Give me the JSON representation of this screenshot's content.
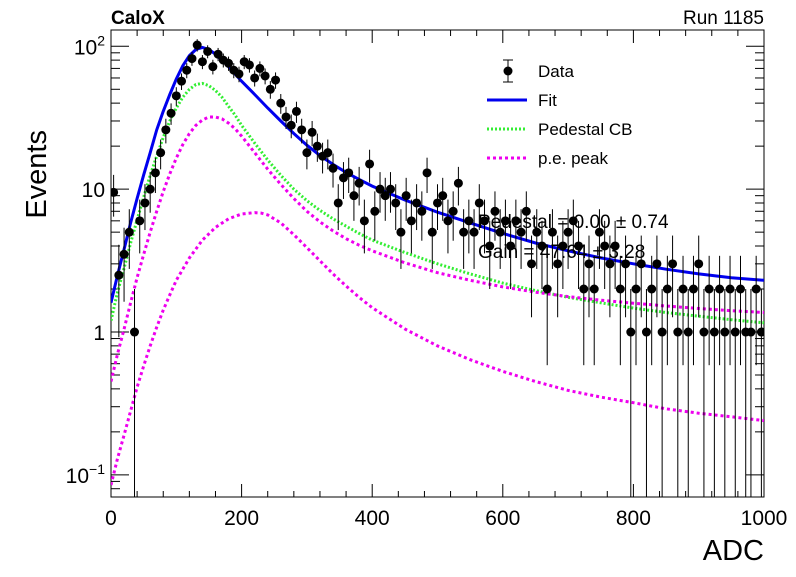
{
  "header": {
    "experiment": "CaloX",
    "run": "Run 1185"
  },
  "chart_data": {
    "type": "scatter",
    "xlabel": "ADC",
    "ylabel": "Events",
    "xlim": [
      0,
      1000
    ],
    "ylim": [
      0.07,
      130
    ],
    "yscale": "log",
    "grid": false,
    "legend_position": "top-right",
    "x_ticks": [
      {
        "value": 0,
        "label": "0"
      },
      {
        "value": 200,
        "label": "200"
      },
      {
        "value": 400,
        "label": "400"
      },
      {
        "value": 600,
        "label": "600"
      },
      {
        "value": 800,
        "label": "800"
      },
      {
        "value": 1000,
        "label": "1000"
      }
    ],
    "y_ticks": [
      {
        "value": 0.1,
        "base": "10",
        "exp": "−1"
      },
      {
        "value": 1,
        "label": "1"
      },
      {
        "value": 10,
        "label": "10"
      },
      {
        "value": 100,
        "base": "10",
        "exp": "2"
      }
    ],
    "legend": [
      {
        "label": "Data",
        "style": "marker",
        "color": "#000000"
      },
      {
        "label": "Fit",
        "style": "solid",
        "color": "#0000ee"
      },
      {
        "label": "Pedestal CB",
        "style": "dotted",
        "color": "#33ee33"
      },
      {
        "label": "p.e. peak",
        "style": "dashed",
        "color": "#ee00ee"
      }
    ],
    "annotations": [
      {
        "text": "Pedestal = 0.00 ± 0.74"
      },
      {
        "text": "Gain = 47.64 ± 3.28"
      }
    ],
    "series": [
      {
        "name": "Data",
        "kind": "points",
        "color": "#000000",
        "points": [
          [
            4,
            9.5
          ],
          [
            12,
            2.5
          ],
          [
            20,
            3.5
          ],
          [
            28,
            5
          ],
          [
            36,
            1
          ],
          [
            44,
            6
          ],
          [
            52,
            8
          ],
          [
            60,
            10
          ],
          [
            68,
            13
          ],
          [
            76,
            18
          ],
          [
            84,
            26
          ],
          [
            92,
            34
          ],
          [
            100,
            45
          ],
          [
            108,
            57
          ],
          [
            116,
            68
          ],
          [
            124,
            82
          ],
          [
            132,
            102
          ],
          [
            140,
            78
          ],
          [
            148,
            92
          ],
          [
            156,
            72
          ],
          [
            164,
            88
          ],
          [
            172,
            80
          ],
          [
            180,
            76
          ],
          [
            188,
            68
          ],
          [
            196,
            64
          ],
          [
            204,
            78
          ],
          [
            212,
            74
          ],
          [
            220,
            60
          ],
          [
            228,
            70
          ],
          [
            236,
            62
          ],
          [
            244,
            50
          ],
          [
            252,
            58
          ],
          [
            260,
            40
          ],
          [
            268,
            32
          ],
          [
            276,
            28
          ],
          [
            284,
            35
          ],
          [
            292,
            26
          ],
          [
            300,
            18
          ],
          [
            308,
            25
          ],
          [
            316,
            20
          ],
          [
            324,
            17
          ],
          [
            332,
            18
          ],
          [
            340,
            14
          ],
          [
            348,
            8
          ],
          [
            356,
            12
          ],
          [
            364,
            13
          ],
          [
            372,
            9
          ],
          [
            380,
            11
          ],
          [
            388,
            6
          ],
          [
            396,
            15
          ],
          [
            404,
            7
          ],
          [
            412,
            10
          ],
          [
            420,
            9
          ],
          [
            428,
            10
          ],
          [
            436,
            8
          ],
          [
            444,
            5
          ],
          [
            452,
            9
          ],
          [
            460,
            6
          ],
          [
            468,
            8
          ],
          [
            476,
            7
          ],
          [
            484,
            13
          ],
          [
            492,
            5
          ],
          [
            500,
            8
          ],
          [
            508,
            9
          ],
          [
            516,
            6
          ],
          [
            524,
            7
          ],
          [
            532,
            11
          ],
          [
            540,
            5
          ],
          [
            548,
            6
          ],
          [
            556,
            5
          ],
          [
            564,
            8
          ],
          [
            572,
            6
          ],
          [
            580,
            4
          ],
          [
            588,
            7
          ],
          [
            596,
            5
          ],
          [
            604,
            6
          ],
          [
            612,
            4
          ],
          [
            620,
            6
          ],
          [
            628,
            5
          ],
          [
            636,
            7
          ],
          [
            644,
            3
          ],
          [
            652,
            5
          ],
          [
            660,
            4
          ],
          [
            668,
            2
          ],
          [
            676,
            5
          ],
          [
            684,
            3
          ],
          [
            692,
            4
          ],
          [
            700,
            5
          ],
          [
            708,
            6
          ],
          [
            716,
            4
          ],
          [
            724,
            2
          ],
          [
            732,
            3
          ],
          [
            740,
            2
          ],
          [
            748,
            5
          ],
          [
            756,
            4
          ],
          [
            764,
            3
          ],
          [
            772,
            4
          ],
          [
            780,
            2
          ],
          [
            788,
            3
          ],
          [
            796,
            1
          ],
          [
            804,
            2
          ],
          [
            812,
            3
          ],
          [
            820,
            1
          ],
          [
            828,
            2
          ],
          [
            836,
            3
          ],
          [
            844,
            1
          ],
          [
            852,
            2
          ],
          [
            860,
            3
          ],
          [
            868,
            1
          ],
          [
            876,
            2
          ],
          [
            884,
            1
          ],
          [
            892,
            2
          ],
          [
            900,
            3
          ],
          [
            908,
            1
          ],
          [
            916,
            2
          ],
          [
            924,
            1
          ],
          [
            932,
            2
          ],
          [
            940,
            1
          ],
          [
            948,
            2
          ],
          [
            956,
            1
          ],
          [
            964,
            2
          ],
          [
            972,
            1
          ],
          [
            980,
            1
          ],
          [
            988,
            2
          ],
          [
            996,
            1
          ]
        ]
      },
      {
        "name": "Fit",
        "kind": "line",
        "color": "#0000ee",
        "points": [
          [
            0,
            1.6
          ],
          [
            10,
            2.5
          ],
          [
            20,
            3.8
          ],
          [
            30,
            5.8
          ],
          [
            40,
            8.6
          ],
          [
            50,
            12.6
          ],
          [
            60,
            18
          ],
          [
            70,
            26
          ],
          [
            80,
            35
          ],
          [
            90,
            46
          ],
          [
            100,
            59
          ],
          [
            110,
            73
          ],
          [
            120,
            86
          ],
          [
            130,
            95
          ],
          [
            140,
            98
          ],
          [
            150,
            95
          ],
          [
            160,
            88
          ],
          [
            170,
            80
          ],
          [
            180,
            72
          ],
          [
            190,
            64
          ],
          [
            200,
            57
          ],
          [
            220,
            46
          ],
          [
            240,
            37
          ],
          [
            260,
            30
          ],
          [
            280,
            24.5
          ],
          [
            300,
            20.3
          ],
          [
            320,
            17.2
          ],
          [
            340,
            14.9
          ],
          [
            360,
            13.1
          ],
          [
            380,
            11.7
          ],
          [
            400,
            10.5
          ],
          [
            450,
            8.4
          ],
          [
            500,
            6.9
          ],
          [
            550,
            5.8
          ],
          [
            600,
            4.9
          ],
          [
            650,
            4.2
          ],
          [
            700,
            3.7
          ],
          [
            750,
            3.3
          ],
          [
            800,
            3.0
          ],
          [
            850,
            2.75
          ],
          [
            900,
            2.55
          ],
          [
            950,
            2.4
          ],
          [
            1000,
            2.3
          ]
        ]
      },
      {
        "name": "Pedestal CB",
        "kind": "line",
        "color": "#33ee33",
        "points": [
          [
            0,
            1.2
          ],
          [
            10,
            1.9
          ],
          [
            20,
            2.8
          ],
          [
            30,
            4.2
          ],
          [
            40,
            6.1
          ],
          [
            50,
            8.8
          ],
          [
            60,
            12.5
          ],
          [
            70,
            17
          ],
          [
            80,
            23
          ],
          [
            90,
            30
          ],
          [
            100,
            37
          ],
          [
            110,
            44
          ],
          [
            120,
            50
          ],
          [
            130,
            54
          ],
          [
            140,
            55
          ],
          [
            150,
            53
          ],
          [
            160,
            49
          ],
          [
            170,
            44
          ],
          [
            180,
            38
          ],
          [
            190,
            33
          ],
          [
            200,
            28
          ],
          [
            220,
            21
          ],
          [
            240,
            16
          ],
          [
            260,
            12.5
          ],
          [
            280,
            10
          ],
          [
            300,
            8.3
          ],
          [
            320,
            7.1
          ],
          [
            340,
            6.2
          ],
          [
            360,
            5.5
          ],
          [
            380,
            4.9
          ],
          [
            400,
            4.4
          ],
          [
            450,
            3.6
          ],
          [
            500,
            3.0
          ],
          [
            550,
            2.55
          ],
          [
            600,
            2.2
          ],
          [
            650,
            1.95
          ],
          [
            700,
            1.75
          ],
          [
            750,
            1.6
          ],
          [
            800,
            1.47
          ],
          [
            850,
            1.37
          ],
          [
            900,
            1.29
          ],
          [
            950,
            1.22
          ],
          [
            1000,
            1.16
          ]
        ]
      },
      {
        "name": "p.e. peak",
        "kind": "line",
        "color": "#ee00ee",
        "points": [
          [
            0,
            0.45
          ],
          [
            10,
            0.7
          ],
          [
            20,
            1.05
          ],
          [
            30,
            1.6
          ],
          [
            40,
            2.4
          ],
          [
            50,
            3.5
          ],
          [
            60,
            5
          ],
          [
            70,
            7
          ],
          [
            80,
            9.6
          ],
          [
            90,
            12.8
          ],
          [
            100,
            16.5
          ],
          [
            110,
            20.5
          ],
          [
            120,
            24.5
          ],
          [
            130,
            28
          ],
          [
            140,
            30.5
          ],
          [
            150,
            32
          ],
          [
            160,
            32
          ],
          [
            170,
            31
          ],
          [
            180,
            29
          ],
          [
            190,
            26.5
          ],
          [
            200,
            23.5
          ],
          [
            220,
            18
          ],
          [
            240,
            13.8
          ],
          [
            260,
            10.8
          ],
          [
            280,
            8.6
          ],
          [
            300,
            7.0
          ],
          [
            320,
            5.9
          ],
          [
            340,
            5.1
          ],
          [
            360,
            4.5
          ],
          [
            380,
            4.05
          ],
          [
            400,
            3.7
          ],
          [
            450,
            3.05
          ],
          [
            500,
            2.6
          ],
          [
            550,
            2.3
          ],
          [
            600,
            2.07
          ],
          [
            650,
            1.9
          ],
          [
            700,
            1.77
          ],
          [
            750,
            1.67
          ],
          [
            800,
            1.59
          ],
          [
            850,
            1.52
          ],
          [
            900,
            1.46
          ],
          [
            950,
            1.41
          ],
          [
            1000,
            1.37
          ]
        ]
      },
      {
        "name": "p.e. peak",
        "kind": "line",
        "color": "#ee00ee",
        "points": [
          [
            0,
            0.085
          ],
          [
            10,
            0.13
          ],
          [
            20,
            0.19
          ],
          [
            30,
            0.28
          ],
          [
            40,
            0.41
          ],
          [
            50,
            0.58
          ],
          [
            60,
            0.8
          ],
          [
            70,
            1.08
          ],
          [
            80,
            1.42
          ],
          [
            90,
            1.82
          ],
          [
            100,
            2.3
          ],
          [
            120,
            3.3
          ],
          [
            140,
            4.4
          ],
          [
            160,
            5.4
          ],
          [
            180,
            6.2
          ],
          [
            200,
            6.7
          ],
          [
            220,
            6.85
          ],
          [
            230,
            6.8
          ],
          [
            240,
            6.6
          ],
          [
            260,
            5.8
          ],
          [
            280,
            4.8
          ],
          [
            300,
            3.9
          ],
          [
            320,
            3.15
          ],
          [
            340,
            2.55
          ],
          [
            360,
            2.1
          ],
          [
            380,
            1.75
          ],
          [
            400,
            1.48
          ],
          [
            450,
            1.05
          ],
          [
            500,
            0.8
          ],
          [
            550,
            0.64
          ],
          [
            600,
            0.53
          ],
          [
            650,
            0.45
          ],
          [
            700,
            0.39
          ],
          [
            750,
            0.35
          ],
          [
            800,
            0.32
          ],
          [
            850,
            0.29
          ],
          [
            900,
            0.27
          ],
          [
            950,
            0.255
          ],
          [
            1000,
            0.24
          ]
        ]
      }
    ]
  }
}
